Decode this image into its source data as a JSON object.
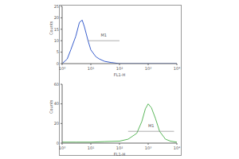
{
  "chart_data": [
    {
      "type": "line",
      "color": "#3a5fcd",
      "log": "x",
      "xlabel": "FL1-H",
      "ylabel": "Counts",
      "x": [
        1,
        1.5,
        2,
        3,
        4,
        5,
        6,
        8,
        10,
        15,
        20,
        30,
        50,
        100,
        1000,
        10000
      ],
      "values": [
        0,
        2,
        6,
        12,
        18,
        19,
        16,
        10,
        6,
        3,
        2,
        1,
        0.5,
        0,
        0,
        0
      ],
      "xlim": [
        1,
        10000
      ],
      "xticks": [
        {
          "value": 1,
          "label": "10⁰"
        },
        {
          "value": 10,
          "label": "10¹"
        },
        {
          "value": 100,
          "label": "10²"
        },
        {
          "value": 1000,
          "label": "10³"
        },
        {
          "value": 10000,
          "label": "10⁴"
        }
      ],
      "ylim": [
        0,
        25
      ],
      "yticks": [
        0,
        5,
        10,
        15,
        20,
        25
      ],
      "gate": {
        "label": "M1",
        "range": [
          8,
          100
        ],
        "level": 10
      }
    },
    {
      "type": "line",
      "color": "#5cb85c",
      "log": "x",
      "xlabel": "FL1-H",
      "ylabel": "Counts",
      "x": [
        1,
        3,
        10,
        30,
        100,
        200,
        400,
        600,
        800,
        1000,
        1300,
        1800,
        2500,
        4000,
        6000,
        10000
      ],
      "values": [
        1,
        1,
        1,
        1.5,
        2,
        4,
        10,
        22,
        35,
        40,
        36,
        25,
        12,
        4,
        2,
        1
      ],
      "xlim": [
        1,
        10000
      ],
      "xticks": [
        {
          "value": 1,
          "label": "10⁰"
        },
        {
          "value": 10,
          "label": "10¹"
        },
        {
          "value": 100,
          "label": "10²"
        },
        {
          "value": 1000,
          "label": "10³"
        },
        {
          "value": 10000,
          "label": "10⁴"
        }
      ],
      "ylim": [
        0,
        60
      ],
      "yticks": [
        0,
        20,
        40,
        60
      ],
      "gate": {
        "label": "M1",
        "range": [
          200,
          8000
        ],
        "level": 12
      }
    }
  ]
}
